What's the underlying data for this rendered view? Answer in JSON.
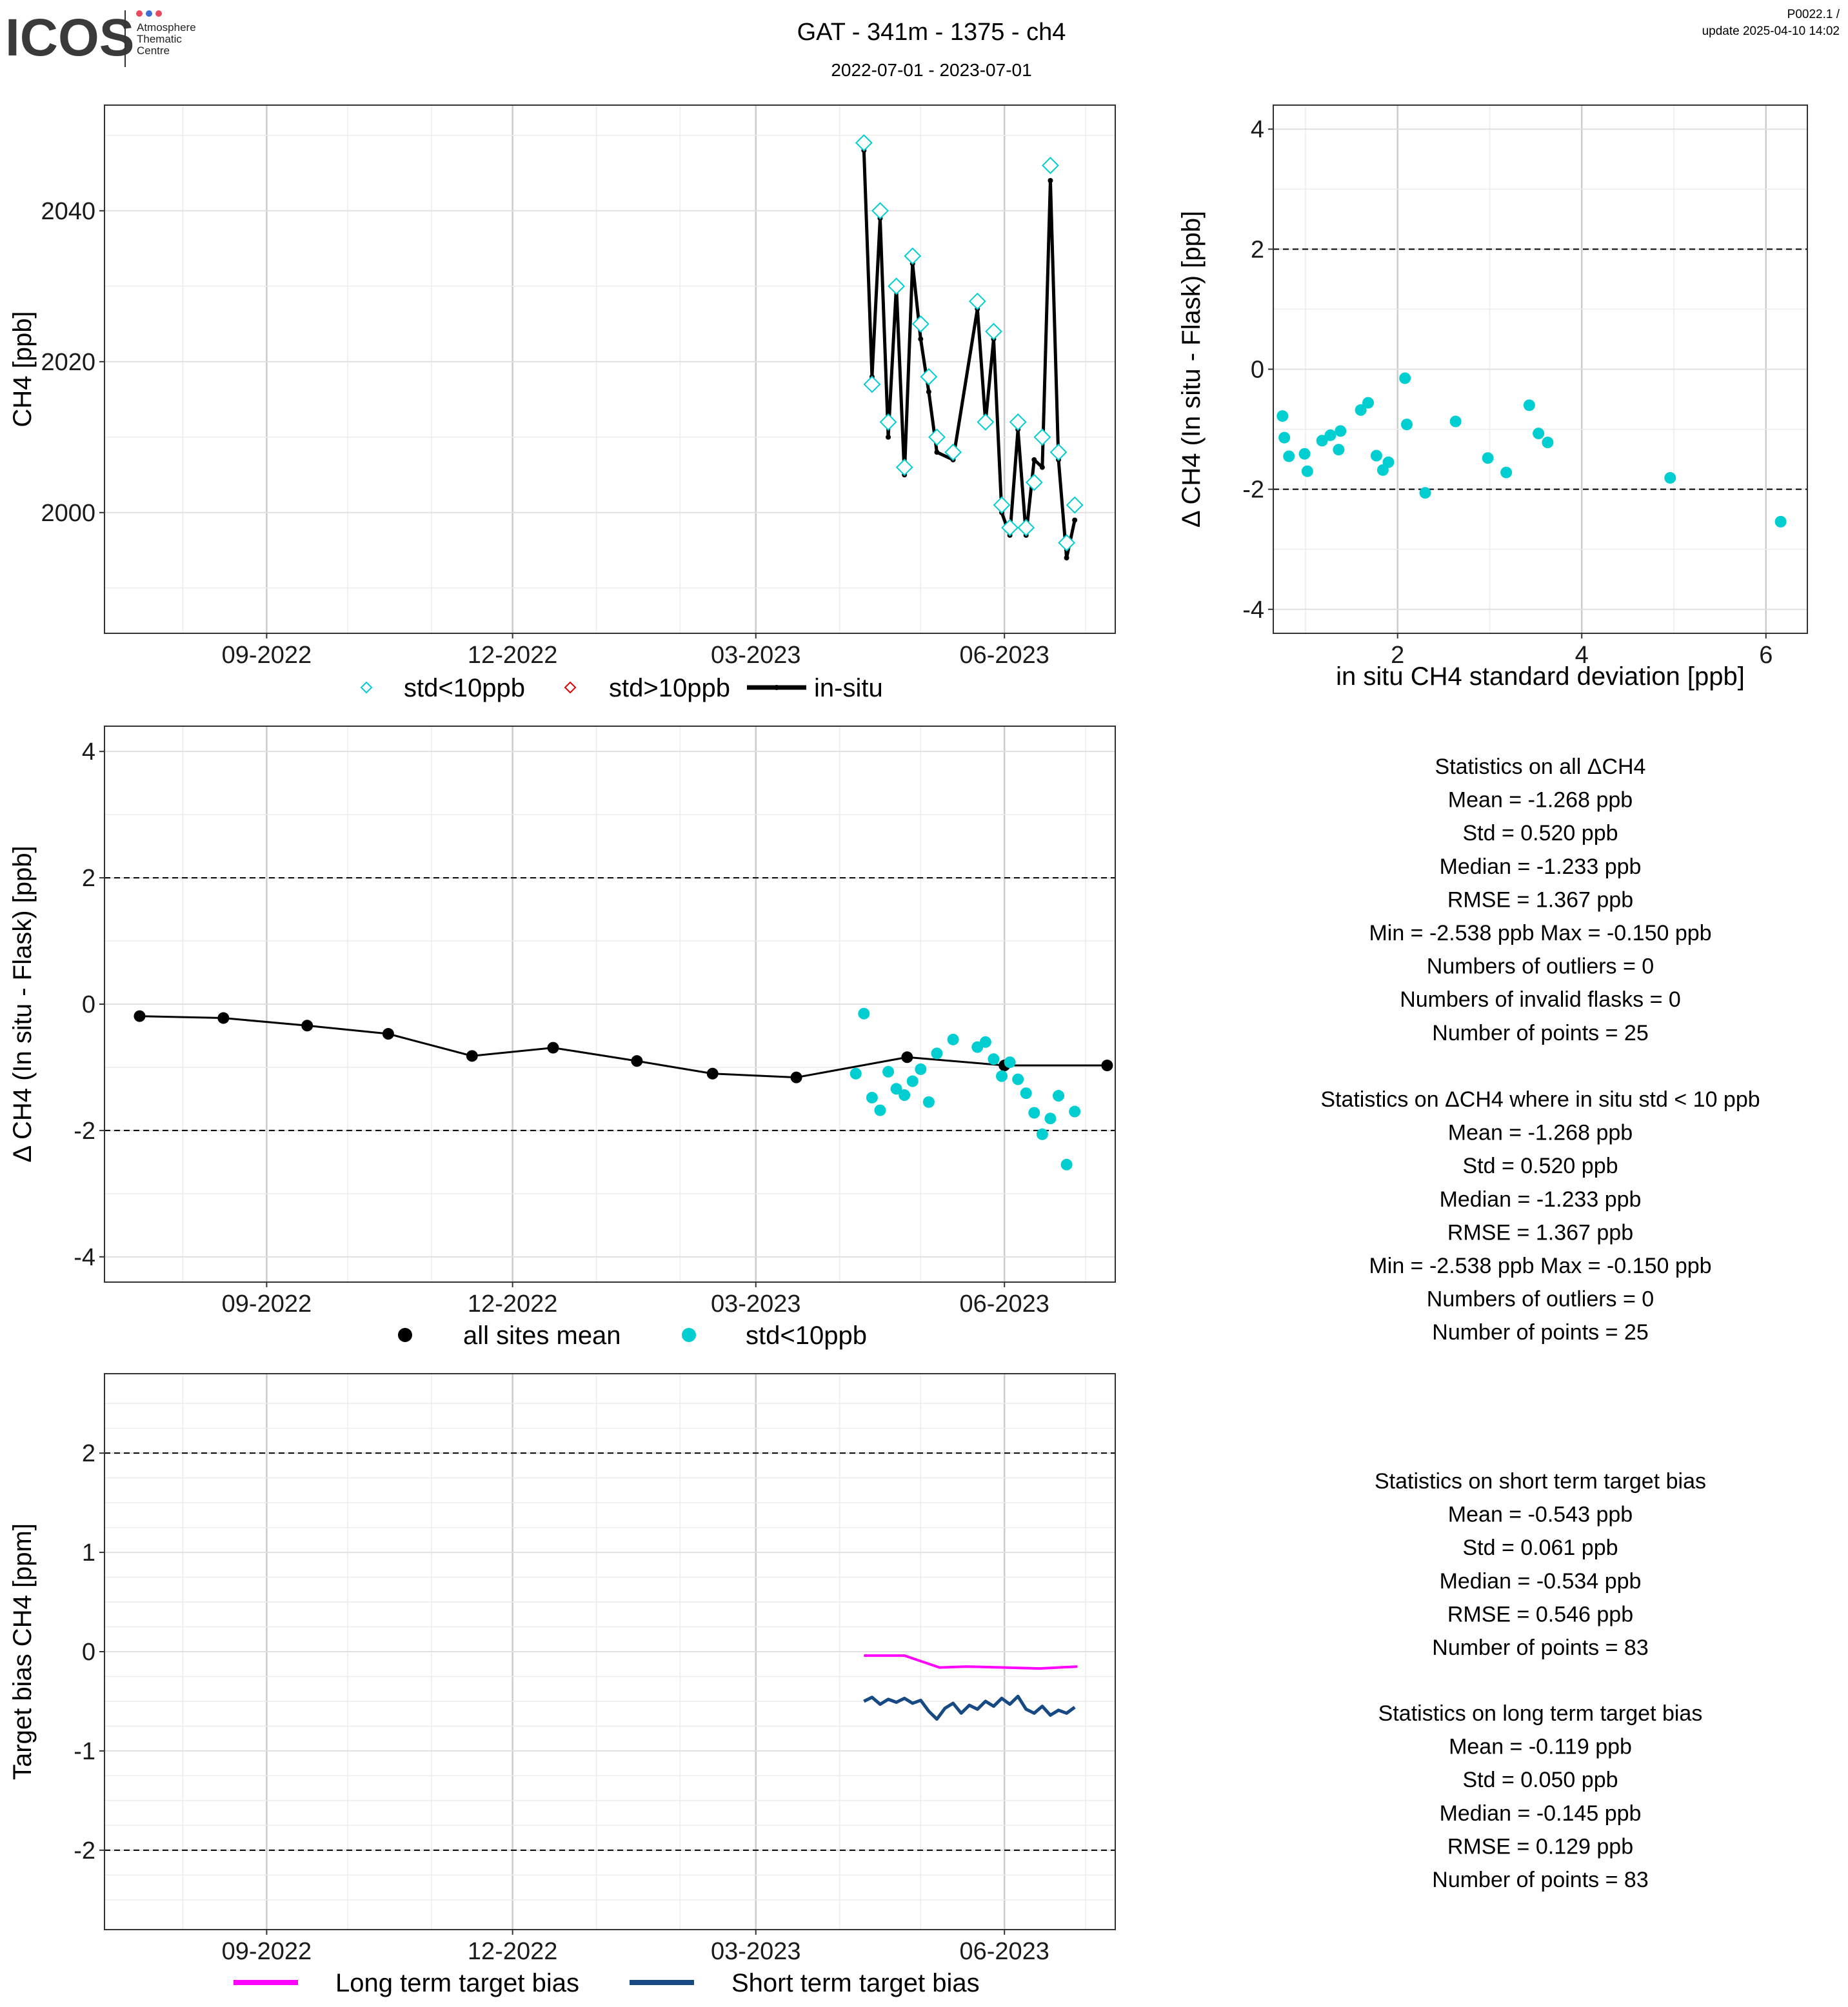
{
  "header": {
    "title": "GAT - 341m - 1375 - ch4",
    "subtitle": "2022-07-01 - 2023-07-01",
    "version": "P0022.1 /",
    "update": "update  2025-04-10 14:02",
    "logo_text": "ICOS",
    "logo_caption": [
      "Atmosphere",
      "Thematic",
      "Centre"
    ],
    "logo_dot_colors": [
      "#e84a5f",
      "#3a6fd8",
      "#e84a5f"
    ]
  },
  "colors": {
    "cyan": "#00CED1",
    "red": "#e00000",
    "black": "#000000",
    "magenta": "#ff00ff",
    "navy": "#174a84"
  },
  "chart_data": [
    {
      "id": "timeseries",
      "type": "line",
      "title": "",
      "xlabel": "",
      "ylabel": "CH4 [ppb]",
      "x_ticks": [
        "09-2022",
        "12-2022",
        "03-2023",
        "06-2023"
      ],
      "y_ticks": [
        "2000",
        "2020",
        "2040"
      ],
      "xlim": [
        "2022-07-03",
        "2023-07-12"
      ],
      "ylim": [
        1984,
        2054
      ],
      "grid": true,
      "legend": [
        {
          "label": "std<10ppb",
          "marker": "diamond-open",
          "color": "#00CED1"
        },
        {
          "label": "std>10ppb",
          "marker": "diamond-open",
          "color": "#e00000"
        },
        {
          "label": "in-situ",
          "marker": "line",
          "color": "#000000"
        }
      ],
      "series": [
        {
          "name": "in-situ",
          "x": [
            "2023-04-10",
            "2023-04-13",
            "2023-04-16",
            "2023-04-19",
            "2023-04-22",
            "2023-04-25",
            "2023-04-28",
            "2023-05-01",
            "2023-05-04",
            "2023-05-07",
            "2023-05-13",
            "2023-05-22",
            "2023-05-25",
            "2023-05-28",
            "2023-05-31",
            "2023-06-03",
            "2023-06-06",
            "2023-06-09",
            "2023-06-12",
            "2023-06-15",
            "2023-06-18",
            "2023-06-21",
            "2023-06-24",
            "2023-06-27"
          ],
          "values": [
            2048,
            2018,
            2039,
            2010,
            2030,
            2005,
            2033,
            2023,
            2016,
            2008,
            2007,
            2027,
            2012,
            2023,
            2000,
            1997,
            2011,
            1997,
            2007,
            2006,
            2044,
            2007,
            1994,
            1999
          ]
        },
        {
          "name": "std<10ppb",
          "x": [
            "2023-04-10",
            "2023-04-13",
            "2023-04-16",
            "2023-04-19",
            "2023-04-22",
            "2023-04-25",
            "2023-04-28",
            "2023-05-01",
            "2023-05-04",
            "2023-05-07",
            "2023-05-13",
            "2023-05-22",
            "2023-05-25",
            "2023-05-28",
            "2023-05-31",
            "2023-06-03",
            "2023-06-06",
            "2023-06-09",
            "2023-06-12",
            "2023-06-15",
            "2023-06-18",
            "2023-06-21",
            "2023-06-24",
            "2023-06-27"
          ],
          "values": [
            2049,
            2017,
            2040,
            2012,
            2030,
            2006,
            2034,
            2025,
            2018,
            2010,
            2008,
            2028,
            2012,
            2024,
            2001,
            1998,
            2012,
            1998,
            2004,
            2010,
            2046,
            2008,
            1996,
            2001
          ]
        }
      ]
    },
    {
      "id": "std_scatter",
      "type": "scatter",
      "title": "",
      "xlabel": "in situ CH4 standard deviation [ppb]",
      "ylabel": "Δ CH4 (In situ - Flask) [ppb]",
      "x_ticks": [
        "2",
        "4",
        "6"
      ],
      "y_ticks": [
        "-4",
        "-2",
        "0",
        "2",
        "4"
      ],
      "xlim": [
        0.65,
        6.45
      ],
      "ylim": [
        -4.4,
        4.4
      ],
      "dashed_lines": [
        2,
        -2
      ],
      "grid": true,
      "series": [
        {
          "name": "std<10ppb",
          "x": [
            0.75,
            0.77,
            0.82,
            0.99,
            1.02,
            1.18,
            1.27,
            1.36,
            1.38,
            1.6,
            1.68,
            1.77,
            1.84,
            1.9,
            2.08,
            2.1,
            2.3,
            2.63,
            2.98,
            3.18,
            3.43,
            3.53,
            3.63,
            4.96,
            6.16
          ],
          "values": [
            -0.78,
            -1.14,
            -1.45,
            -1.41,
            -1.7,
            -1.19,
            -1.1,
            -1.34,
            -1.03,
            -0.68,
            -0.56,
            -1.44,
            -1.68,
            -1.55,
            -0.15,
            -0.92,
            -2.06,
            -0.87,
            -1.48,
            -1.72,
            -0.6,
            -1.07,
            -1.22,
            -1.81,
            -2.54
          ]
        }
      ]
    },
    {
      "id": "delta_timeseries",
      "type": "scatter",
      "title": "",
      "xlabel": "",
      "ylabel": "Δ CH4 (In situ - Flask) [ppb]",
      "x_ticks": [
        "09-2022",
        "12-2022",
        "03-2023",
        "06-2023"
      ],
      "y_ticks": [
        "-4",
        "-2",
        "0",
        "2",
        "4"
      ],
      "xlim": [
        "2022-07-03",
        "2023-07-12"
      ],
      "ylim": [
        -4.4,
        4.4
      ],
      "dashed_lines": [
        2,
        -2
      ],
      "grid": true,
      "legend": [
        {
          "label": "all sites mean",
          "marker": "dot",
          "color": "#000000"
        },
        {
          "label": "std<10ppb",
          "marker": "dot",
          "color": "#00CED1"
        }
      ],
      "series": [
        {
          "name": "all sites mean",
          "x": [
            "2022-07-16",
            "2022-08-16",
            "2022-09-16",
            "2022-10-16",
            "2022-11-16",
            "2022-12-16",
            "2023-01-16",
            "2023-02-13",
            "2023-03-16",
            "2023-04-26",
            "2023-06-01",
            "2023-07-09"
          ],
          "values": [
            -0.19,
            -0.22,
            -0.34,
            -0.47,
            -0.82,
            -0.69,
            -0.9,
            -1.1,
            -1.16,
            -0.84,
            -0.97,
            -0.97
          ]
        },
        {
          "name": "std<10ppb",
          "x": [
            "2023-04-07",
            "2023-04-10",
            "2023-04-13",
            "2023-04-16",
            "2023-04-19",
            "2023-04-22",
            "2023-04-25",
            "2023-04-28",
            "2023-05-01",
            "2023-05-04",
            "2023-05-07",
            "2023-05-13",
            "2023-05-22",
            "2023-05-25",
            "2023-05-28",
            "2023-05-31",
            "2023-06-03",
            "2023-06-06",
            "2023-06-09",
            "2023-06-12",
            "2023-06-15",
            "2023-06-18",
            "2023-06-21",
            "2023-06-24",
            "2023-06-27"
          ],
          "values": [
            -1.1,
            -0.15,
            -1.48,
            -1.68,
            -1.07,
            -1.34,
            -1.44,
            -1.22,
            -1.03,
            -1.55,
            -0.78,
            -0.56,
            -0.68,
            -0.6,
            -0.87,
            -1.14,
            -0.92,
            -1.19,
            -1.41,
            -1.72,
            -2.06,
            -1.81,
            -1.45,
            -2.54,
            -1.7
          ]
        }
      ]
    },
    {
      "id": "target_bias",
      "type": "line",
      "title": "",
      "xlabel": "",
      "ylabel": "Target bias CH4 [ppm]",
      "x_ticks": [
        "09-2022",
        "12-2022",
        "03-2023",
        "06-2023"
      ],
      "y_ticks": [
        "-2",
        "-1",
        "0",
        "1",
        "2"
      ],
      "xlim": [
        "2022-07-03",
        "2023-07-12"
      ],
      "ylim": [
        -2.8,
        2.8
      ],
      "dashed_lines": [
        2,
        -2
      ],
      "grid": true,
      "legend": [
        {
          "label": "Long term target bias",
          "marker": "line",
          "color": "#ff00ff"
        },
        {
          "label": "Short term target bias",
          "marker": "line",
          "color": "#174a84"
        }
      ],
      "series": [
        {
          "name": "Long term target bias",
          "x": [
            "2023-04-10",
            "2023-04-25",
            "2023-05-08",
            "2023-05-18",
            "2023-06-01",
            "2023-06-14",
            "2023-06-28"
          ],
          "values": [
            -0.04,
            -0.04,
            -0.16,
            -0.15,
            -0.16,
            -0.17,
            -0.15
          ]
        },
        {
          "name": "Short term target bias",
          "x": [
            "2023-04-10",
            "2023-04-13",
            "2023-04-16",
            "2023-04-19",
            "2023-04-22",
            "2023-04-25",
            "2023-04-28",
            "2023-05-01",
            "2023-05-04",
            "2023-05-07",
            "2023-05-10",
            "2023-05-13",
            "2023-05-16",
            "2023-05-19",
            "2023-05-22",
            "2023-05-25",
            "2023-05-28",
            "2023-05-31",
            "2023-06-03",
            "2023-06-06",
            "2023-06-09",
            "2023-06-12",
            "2023-06-15",
            "2023-06-18",
            "2023-06-21",
            "2023-06-24",
            "2023-06-27"
          ],
          "values": [
            -0.5,
            -0.46,
            -0.53,
            -0.48,
            -0.51,
            -0.47,
            -0.52,
            -0.49,
            -0.6,
            -0.68,
            -0.57,
            -0.52,
            -0.62,
            -0.54,
            -0.58,
            -0.5,
            -0.55,
            -0.47,
            -0.53,
            -0.45,
            -0.58,
            -0.62,
            -0.55,
            -0.64,
            -0.59,
            -0.62,
            -0.56
          ]
        }
      ]
    }
  ],
  "stats": {
    "all": {
      "title": "Statistics on all ΔCH4",
      "lines": [
        "Mean =  -1.268 ppb",
        "Std =  0.520 ppb",
        "Median =  -1.233 ppb",
        "RMSE =  1.367 ppb",
        "Min =  -2.538 ppb Max =  -0.150 ppb",
        "Numbers of outliers =  0",
        "Numbers of invalid flasks =  0",
        "Number of points =  25"
      ]
    },
    "std10": {
      "title": "Statistics on ΔCH4 where in situ std < 10 ppb",
      "lines": [
        "Mean =  -1.268 ppb",
        "Std =  0.520 ppb",
        "Median =  -1.233 ppb",
        "RMSE =  1.367 ppb",
        "Min =  -2.538 ppb Max =  -0.150 ppb",
        "Numbers of outliers =  0",
        "Number of points =  25"
      ]
    },
    "short_bias": {
      "title": "Statistics on short term target bias",
      "lines": [
        "Mean =  -0.543 ppb",
        "Std =  0.061 ppb",
        "Median =  -0.534 ppb",
        "RMSE =  0.546 ppb",
        "Number of points =  83"
      ]
    },
    "long_bias": {
      "title": "Statistics on long term target bias",
      "lines": [
        "Mean =  -0.119 ppb",
        "Std =  0.050 ppb",
        "Median =  -0.145 ppb",
        "RMSE =  0.129 ppb",
        "Number of points =  83"
      ]
    }
  }
}
